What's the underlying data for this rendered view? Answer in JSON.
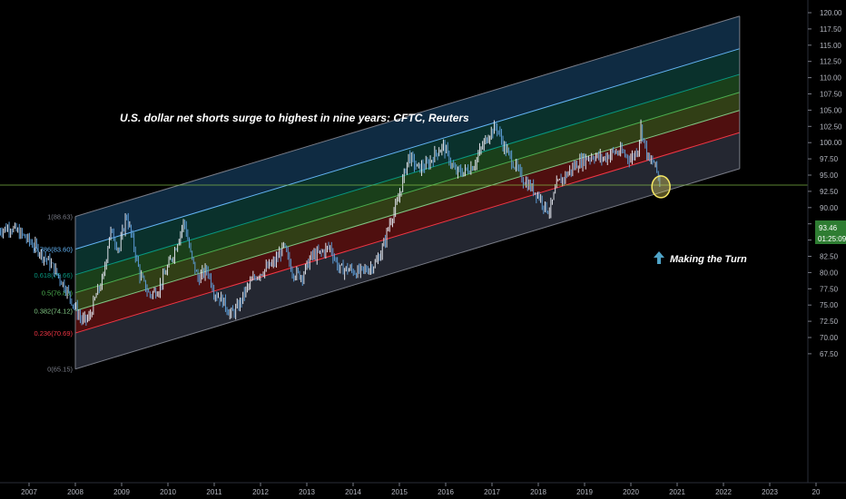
{
  "chart_data": {
    "type": "line",
    "title": "U.S. dollar net shorts surge to highest in nine years: CFTC, Reuters",
    "annotation": "Making the Turn",
    "ylim": [
      67.5,
      121
    ],
    "xlim": [
      2006.35,
      2024.0
    ],
    "y_ticks": [
      "67.50",
      "70.00",
      "72.50",
      "75.00",
      "77.50",
      "80.00",
      "82.50",
      "85.00",
      "87.50",
      "90.00",
      "92.50",
      "95.00",
      "97.50",
      "100.00",
      "102.50",
      "105.00",
      "107.50",
      "110.00",
      "112.50",
      "115.00",
      "117.50",
      "120.00"
    ],
    "x_ticks": [
      "2007",
      "2008",
      "2009",
      "2010",
      "2011",
      "2012",
      "2013",
      "2014",
      "2015",
      "2016",
      "2017",
      "2018",
      "2019",
      "2020",
      "2021",
      "2022",
      "2023",
      "20"
    ],
    "current_price": "93.46",
    "countdown": "01:25:09",
    "price_line_color": "#8bc34a",
    "fib_channel": {
      "start": {
        "x": 2008.0,
        "y": 65.15
      },
      "end": {
        "x": 2022.35,
        "y": 96.0
      },
      "height": 23.48,
      "levels": [
        {
          "ratio": 0,
          "label": "0(65.15)",
          "color": "#787b86"
        },
        {
          "ratio": 0.236,
          "label": "0.236(70.69)",
          "color": "#f23645"
        },
        {
          "ratio": 0.382,
          "label": "0.382(74.12)",
          "color": "#81c784"
        },
        {
          "ratio": 0.5,
          "label": "0.5(76.89)",
          "color": "#4caf50"
        },
        {
          "ratio": 0.618,
          "label": "0.618(79.66)",
          "color": "#089981"
        },
        {
          "ratio": 0.786,
          "label": "0.786(83.60)",
          "color": "#64b5f6"
        },
        {
          "ratio": 1,
          "label": "1(88.63)",
          "color": "#787b86"
        }
      ],
      "fills": [
        "#2a2e39",
        "#5d1212",
        "#3a4a1a",
        "#1e4a1e",
        "#0c3a34",
        "#12324d"
      ]
    },
    "series": [
      {
        "x": [
          2006.35,
          2006.6,
          2006.9,
          2007.2,
          2007.5,
          2007.8,
          2008.0,
          2008.15,
          2008.3,
          2008.45,
          2008.6,
          2008.75,
          2008.95,
          2009.1,
          2009.25,
          2009.4,
          2009.6,
          2009.8,
          2009.95,
          2010.15,
          2010.35,
          2010.5,
          2010.65,
          2010.85,
          2011.0,
          2011.2,
          2011.35,
          2011.5,
          2011.7,
          2011.9,
          2012.1,
          2012.3,
          2012.5,
          2012.7,
          2012.9,
          2013.1,
          2013.3,
          2013.5,
          2013.7,
          2013.9,
          2014.1,
          2014.3,
          2014.5,
          2014.65,
          2014.8,
          2014.95,
          2015.1,
          2015.2,
          2015.4,
          2015.6,
          2015.8,
          2015.95,
          2016.2,
          2016.4,
          2016.6,
          2016.8,
          2016.95,
          2017.1,
          2017.25,
          2017.45,
          2017.65,
          2017.85,
          2018.0,
          2018.15,
          2018.25,
          2018.4,
          2018.6,
          2018.8,
          2019.0,
          2019.2,
          2019.4,
          2019.6,
          2019.8,
          2020.0,
          2020.15,
          2020.22,
          2020.3,
          2020.4,
          2020.5,
          2020.6,
          2020.65
        ],
        "y": [
          86.5,
          87.0,
          85.5,
          83.5,
          81.0,
          77.5,
          74.5,
          72.5,
          73.0,
          76.5,
          79.0,
          86.5,
          83.5,
          89.0,
          84.5,
          79.5,
          76.5,
          77.5,
          80.0,
          83.5,
          88.0,
          82.5,
          79.0,
          80.5,
          77.0,
          75.5,
          73.5,
          74.5,
          77.5,
          79.5,
          80.5,
          81.5,
          84.0,
          80.0,
          79.5,
          82.5,
          83.0,
          84.0,
          80.5,
          80.5,
          80.0,
          80.5,
          81.5,
          84.0,
          88.0,
          90.5,
          95.0,
          98.0,
          96.0,
          96.5,
          98.5,
          99.5,
          95.5,
          95.5,
          96.5,
          99.5,
          101.5,
          102.5,
          99.5,
          97.0,
          94.5,
          93.0,
          92.0,
          90.0,
          89.5,
          93.5,
          95.0,
          96.5,
          97.5,
          98.0,
          97.5,
          98.5,
          98.5,
          97.5,
          99.0,
          102.5,
          99.5,
          97.0,
          97.0,
          94.5,
          93.46
        ]
      }
    ]
  }
}
